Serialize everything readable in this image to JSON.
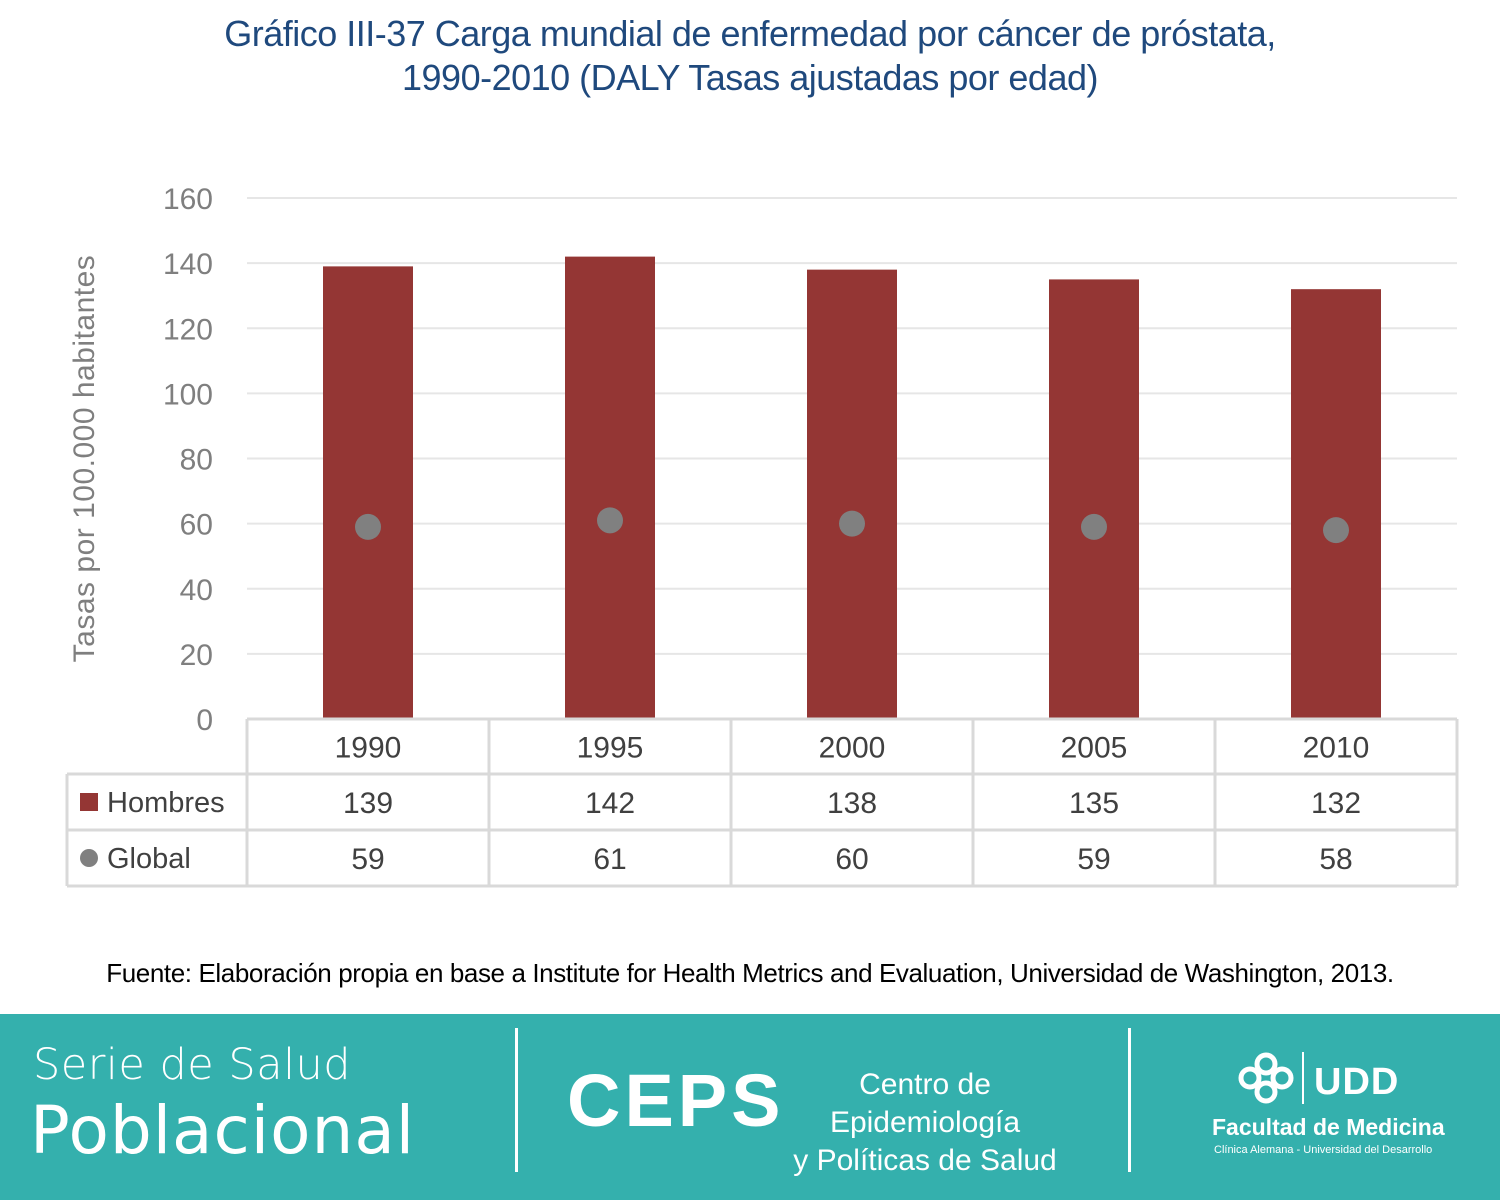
{
  "title": {
    "line1": "Gráfico III-37 Carga mundial de enfermedad por cáncer de próstata,",
    "line2": "1990-2010 (DALY Tasas ajustadas por edad)"
  },
  "chart_data": {
    "type": "bar",
    "ylabel": "Tasas por 100.000 habitantes",
    "xlabel": "",
    "ylim": [
      0,
      160
    ],
    "yticks": [
      0,
      20,
      40,
      60,
      80,
      100,
      120,
      140,
      160
    ],
    "categories": [
      "1990",
      "1995",
      "2000",
      "2005",
      "2010"
    ],
    "grid": true,
    "legend": "data-table",
    "series": [
      {
        "name": "Hombres",
        "mark": "bar",
        "color": "#943634",
        "values": [
          139,
          142,
          138,
          135,
          132
        ]
      },
      {
        "name": "Global",
        "mark": "point",
        "color": "#808080",
        "values": [
          59,
          61,
          60,
          59,
          58
        ]
      }
    ]
  },
  "source": "Fuente: Elaboración propia en base a Institute for Health Metrics and Evaluation, Universidad de Washington, 2013.",
  "footer": {
    "serie_line1": "Serie de Salud",
    "serie_line2": "Poblacional",
    "ceps": "CEPS",
    "ceps_line1": "Centro de Epidemiología",
    "ceps_line2": "y Políticas de Salud",
    "udd": "UDD",
    "faculty": "Facultad de Medicina",
    "faculty_sub": "Clínica Alemana - Universidad del Desarrollo",
    "background_color": "#34b0ad"
  }
}
